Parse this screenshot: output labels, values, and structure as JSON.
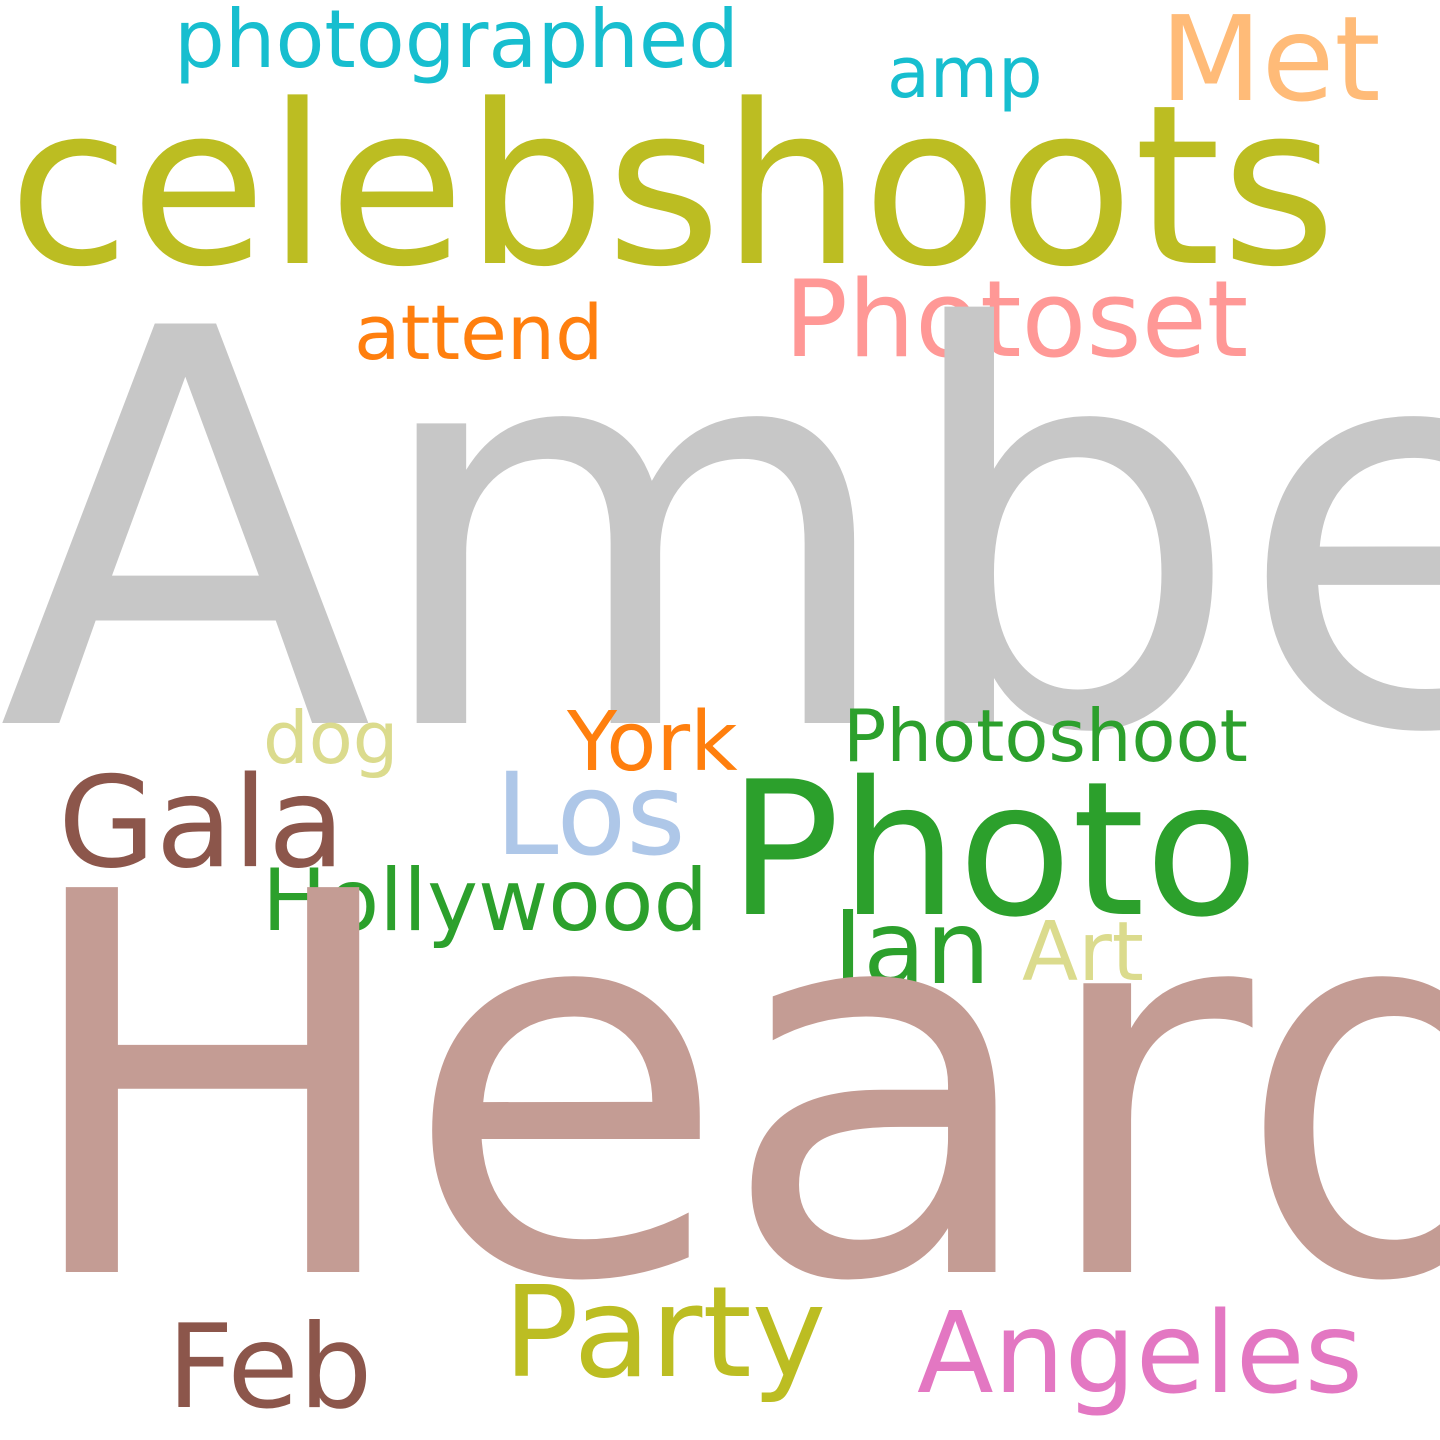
{
  "cloud": {
    "words": {
      "photographed": {
        "text": "photographed",
        "color": "#17becf"
      },
      "met": {
        "text": "Met",
        "color": "#ffbb78"
      },
      "amp": {
        "text": "amp",
        "color": "#17becf"
      },
      "celebshoots": {
        "text": "celebshoots",
        "color": "#bcbd22"
      },
      "photoset": {
        "text": "Photoset",
        "color": "#ff9896"
      },
      "attend": {
        "text": "attend",
        "color": "#ff7f0e"
      },
      "amber": {
        "text": "Amber",
        "color": "#c7c7c7"
      },
      "dog": {
        "text": "dog",
        "color": "#dbdb8d"
      },
      "york": {
        "text": "York",
        "color": "#ff7f0e"
      },
      "photoshoot": {
        "text": "Photoshoot",
        "color": "#2ca02c"
      },
      "gala": {
        "text": "Gala",
        "color": "#8c564b"
      },
      "los": {
        "text": "Los",
        "color": "#aec7e8"
      },
      "photo": {
        "text": "Photo",
        "color": "#2ca02c"
      },
      "hollywood": {
        "text": "Hollywood",
        "color": "#2ca02c"
      },
      "jan": {
        "text": "Jan",
        "color": "#2ca02c"
      },
      "art": {
        "text": "Art",
        "color": "#dbdb8d"
      },
      "heard": {
        "text": "Heard",
        "color": "#c49c94"
      },
      "party": {
        "text": "Party",
        "color": "#bcbd22"
      },
      "angeles": {
        "text": "Angeles",
        "color": "#e377c2"
      },
      "feb": {
        "text": "Feb",
        "color": "#8c564b"
      }
    }
  }
}
